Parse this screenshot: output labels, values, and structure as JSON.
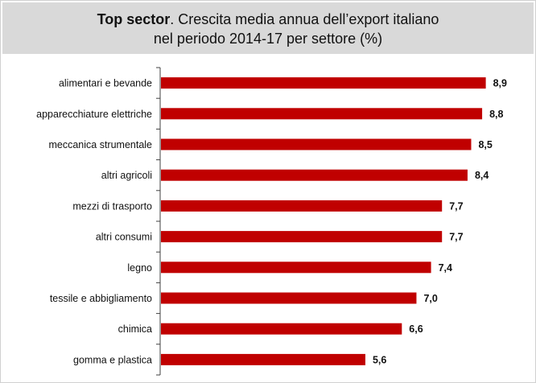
{
  "title": {
    "bold": "Top sector",
    "rest": ". Crescita media annua  dell’export italiano",
    "line2": "nel periodo 2014-17 per settore (%)"
  },
  "colors": {
    "bar": "#c00000",
    "title_background": "#d9d9d9",
    "axis": "#404040"
  },
  "chart_data": {
    "type": "bar",
    "orientation": "horizontal",
    "title": "Top sector. Crescita media annua dell’export italiano nel periodo 2014-17 per settore (%)",
    "categories": [
      "alimentari e bevande",
      "apparecchiature elettriche",
      "meccanica strumentale",
      "altri agricoli",
      "mezzi di trasporto",
      "altri consumi",
      "legno",
      "tessile e abbigliamento",
      "chimica",
      "gomma e plastica"
    ],
    "values": [
      8.9,
      8.8,
      8.5,
      8.4,
      7.7,
      7.7,
      7.4,
      7.0,
      6.6,
      5.6
    ],
    "value_labels": [
      "8,9",
      "8,8",
      "8,5",
      "8,4",
      "7,7",
      "7,7",
      "7,4",
      "7,0",
      "6,6",
      "5,6"
    ],
    "xlim": [
      0,
      9.6
    ],
    "grid": false,
    "legend": "none"
  }
}
